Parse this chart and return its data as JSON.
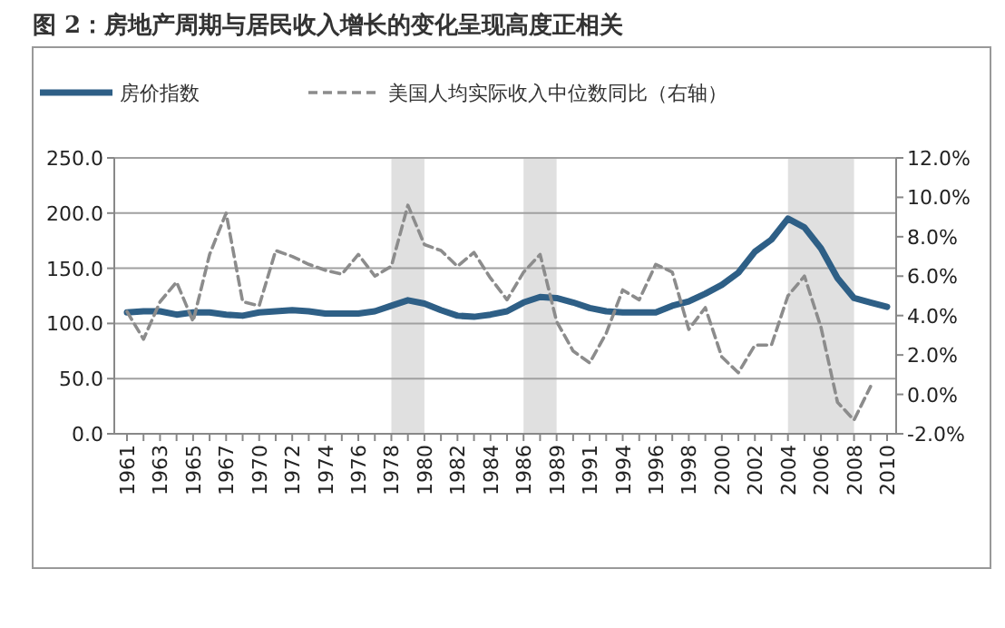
{
  "chart_data": {
    "type": "line",
    "title": "图 2：房地产周期与居民收入增长的变化呈现高度正相关",
    "categories": [
      "1961",
      null,
      "1963",
      null,
      "1965",
      null,
      "1967",
      null,
      "1970",
      null,
      "1972",
      null,
      "1974",
      null,
      "1976",
      null,
      "1978",
      null,
      "1980",
      null,
      "1982",
      null,
      "1984",
      null,
      "1986",
      null,
      "1989",
      null,
      "1991",
      null,
      "1994",
      null,
      "1996",
      null,
      "1998",
      null,
      "2000",
      null,
      "2002",
      null,
      "2004",
      null,
      "2006",
      null,
      "2008",
      null,
      "2010"
    ],
    "series": [
      {
        "name": "房价指数",
        "color": "#2e5f86",
        "line_style": "solid",
        "values": [
          110,
          111,
          111,
          108,
          110,
          110,
          108,
          107,
          110,
          111,
          112,
          111,
          109,
          109,
          109,
          111,
          116,
          121,
          118,
          112,
          107,
          106,
          108,
          111,
          119,
          124,
          123,
          119,
          114,
          111,
          110,
          110,
          110,
          116,
          120,
          127,
          135,
          146,
          165,
          176,
          195,
          187,
          168,
          141,
          123,
          119,
          115
        ]
      },
      {
        "name": "美国人均实际收入中位数同比（右轴）",
        "color": "#8c8c8c",
        "line_style": "dashed",
        "axis": "y2",
        "values": [
          4.2,
          2.8,
          4.7,
          5.7,
          3.7,
          7.1,
          9.2,
          4.7,
          4.5,
          7.3,
          7.0,
          6.6,
          6.3,
          6.1,
          7.1,
          6.0,
          6.5,
          9.6,
          7.6,
          7.3,
          6.5,
          7.2,
          5.9,
          4.8,
          6.2,
          7.1,
          3.7,
          2.2,
          1.6,
          3.1,
          5.3,
          4.8,
          6.6,
          6.2,
          3.3,
          4.4,
          1.9,
          1.1,
          2.5,
          2.5,
          5.0,
          6.0,
          3.4,
          -0.4,
          -1.3,
          0.4,
          null
        ]
      }
    ],
    "ylim": [
      0,
      250
    ],
    "yticks": [
      {
        "value": 0,
        "label": "0.0"
      },
      {
        "value": 50,
        "label": "50.0"
      },
      {
        "value": 100,
        "label": "100.0"
      },
      {
        "value": 150,
        "label": "150.0"
      },
      {
        "value": 200,
        "label": "200.0"
      },
      {
        "value": 250,
        "label": "250.0"
      }
    ],
    "y2lim": [
      -2,
      12
    ],
    "y2ticks": [
      {
        "value": -2,
        "label": "-2.0%"
      },
      {
        "value": 0,
        "label": "0.0%"
      },
      {
        "value": 2,
        "label": "2.0%"
      },
      {
        "value": 4,
        "label": "4.0%"
      },
      {
        "value": 6,
        "label": "6.0%"
      },
      {
        "value": 8,
        "label": "8.0%"
      },
      {
        "value": 10,
        "label": "10.0%"
      },
      {
        "value": 12,
        "label": "12.0%"
      }
    ],
    "bands": [
      {
        "axis": "x",
        "from": "1978",
        "to": "1980",
        "color": "#e0e0e0"
      },
      {
        "axis": "x",
        "from": "1986",
        "to": "1989",
        "color": "#e0e0e0"
      },
      {
        "axis": "x",
        "from": "2004",
        "to": "2008",
        "color": "#e0e0e0"
      }
    ],
    "grid": "y",
    "legend": "top",
    "marker": "none"
  }
}
